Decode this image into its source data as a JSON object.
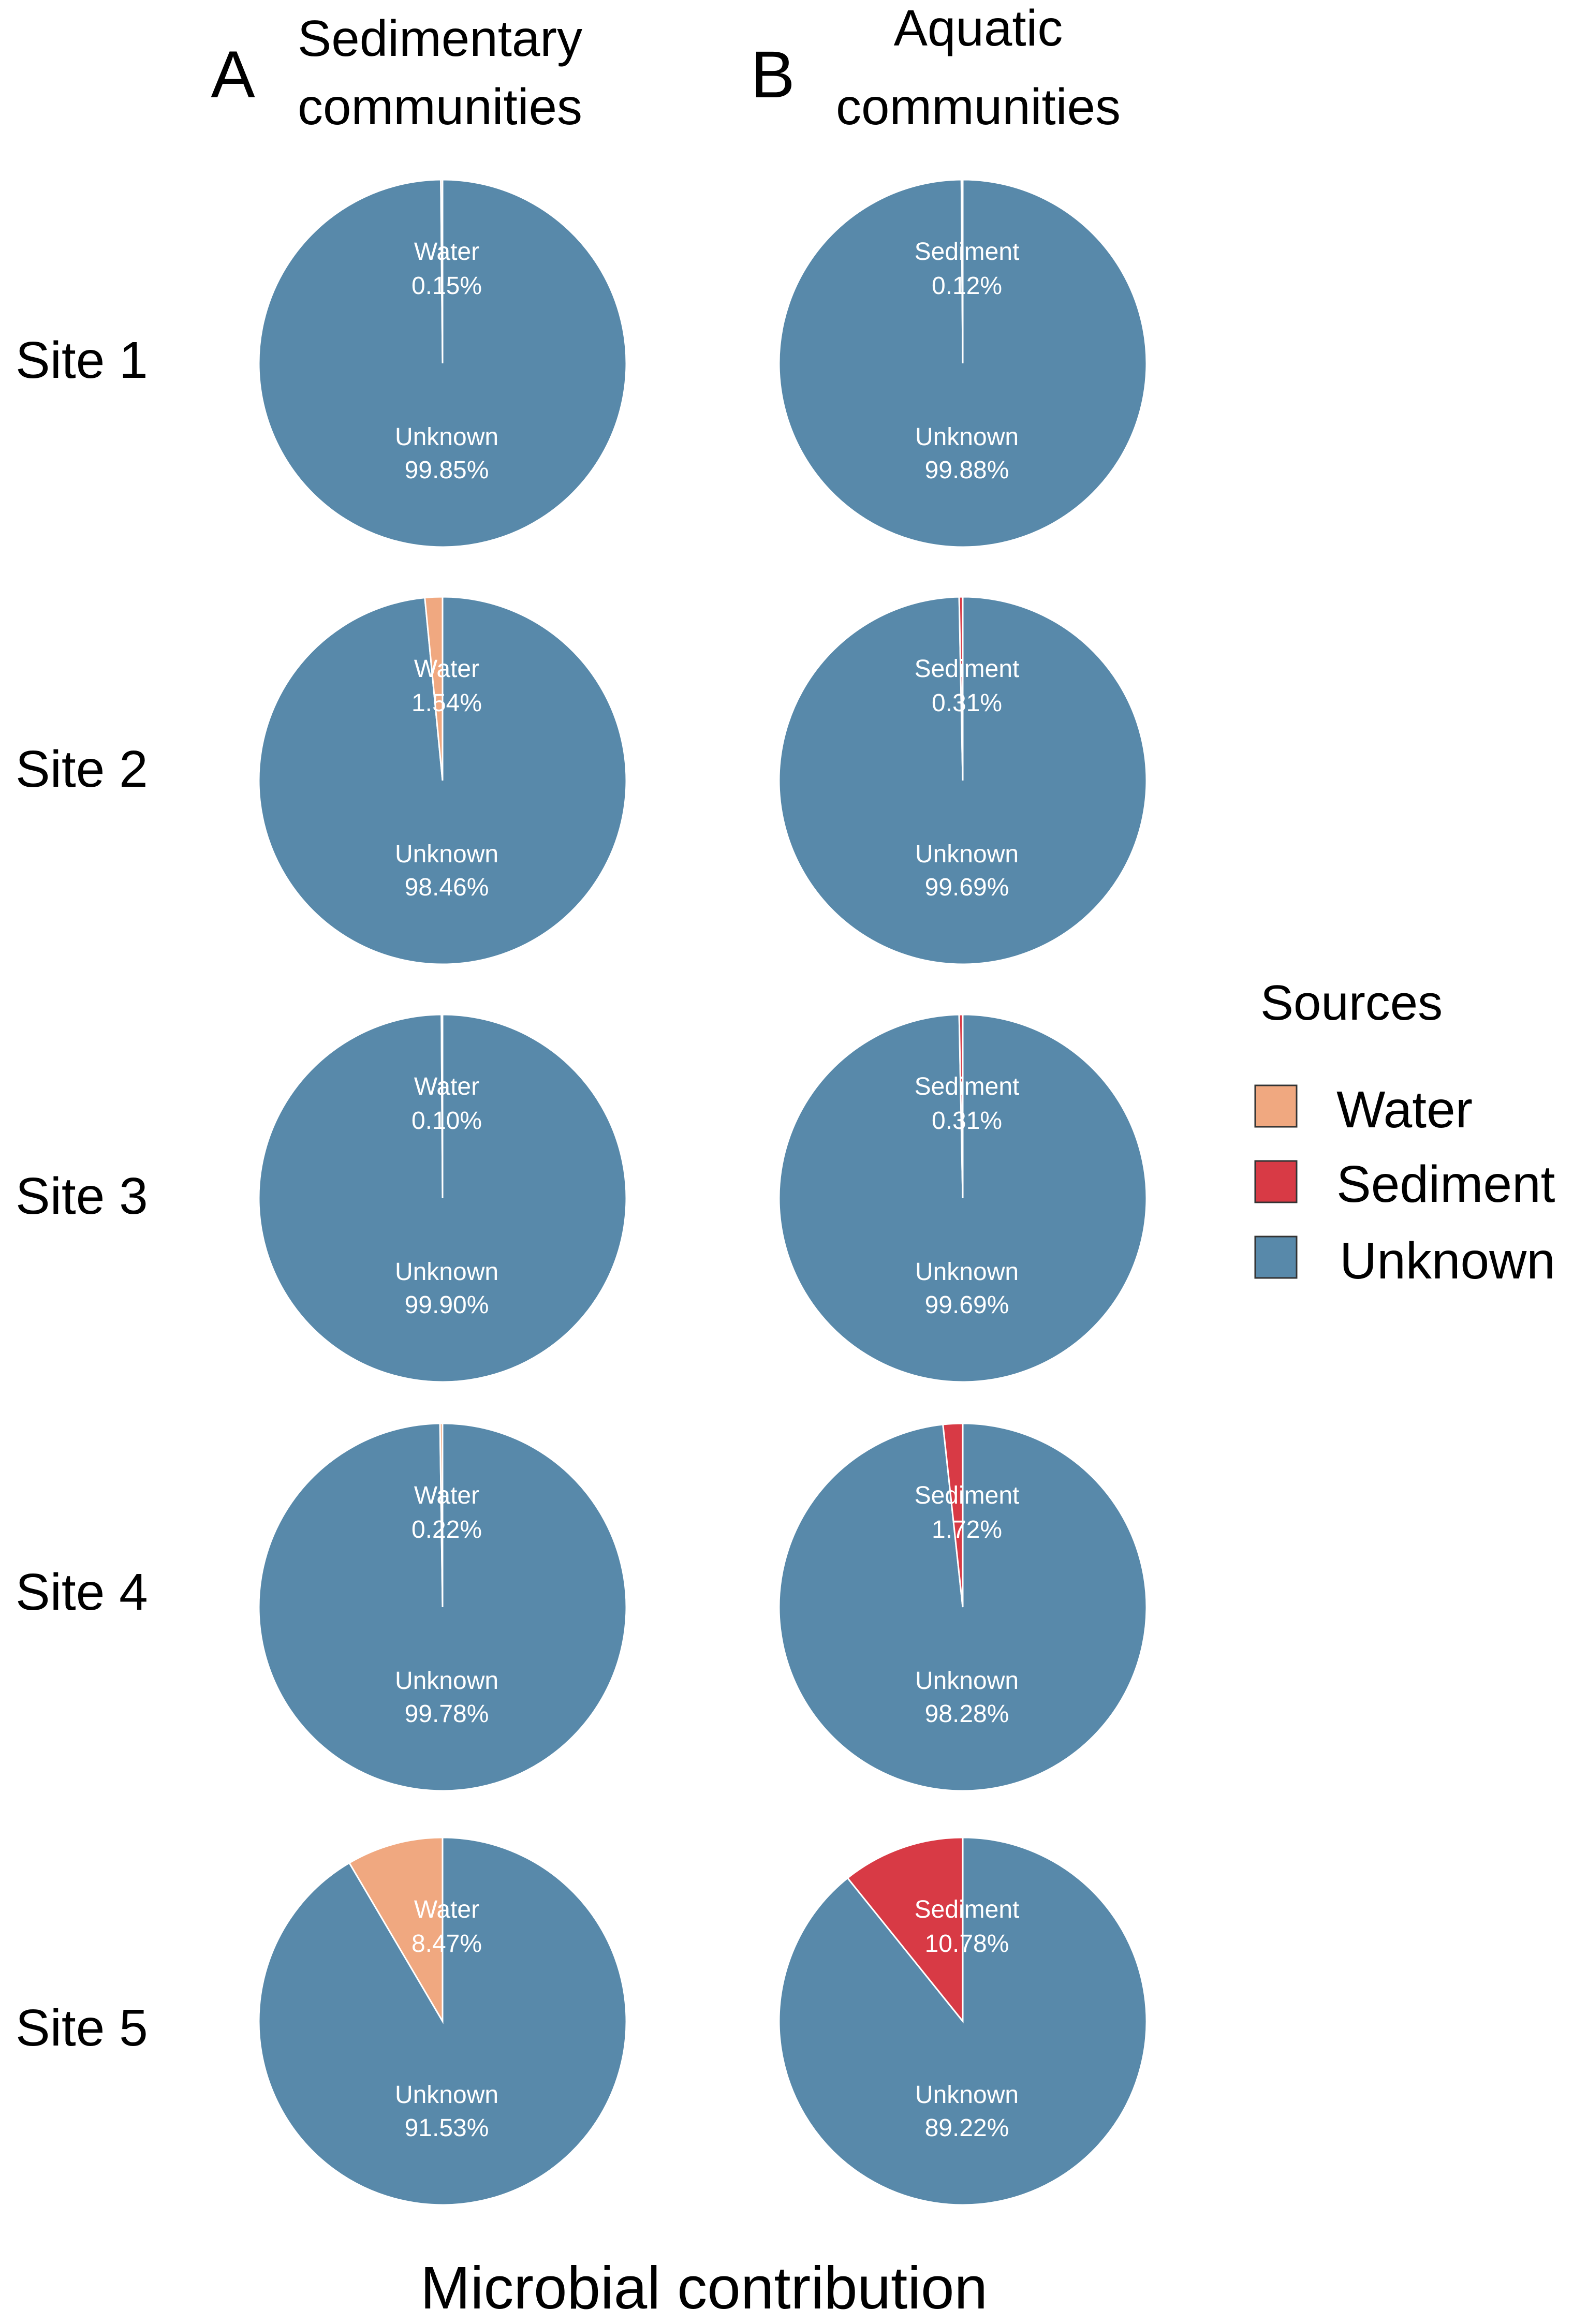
{
  "chart_data": {
    "type": "pie",
    "xlabel": "Microbial contribution",
    "panels": [
      {
        "letter": "A",
        "title": [
          "Sedimentary",
          "communities"
        ]
      },
      {
        "letter": "B",
        "title": [
          "Aquatic",
          "communities"
        ]
      }
    ],
    "rows": [
      "Site 1",
      "Site 2",
      "Site 3",
      "Site 4",
      "Site 5"
    ],
    "charts": [
      {
        "panel": "A",
        "site": "Site 1",
        "slices": [
          {
            "source": "Water",
            "value": 0.15,
            "label": "0.15%"
          },
          {
            "source": "Unknown",
            "value": 99.85,
            "label": "99.85%"
          }
        ]
      },
      {
        "panel": "B",
        "site": "Site 1",
        "slices": [
          {
            "source": "Sediment",
            "value": 0.12,
            "label": "0.12%"
          },
          {
            "source": "Unknown",
            "value": 99.88,
            "label": "99.88%"
          }
        ]
      },
      {
        "panel": "A",
        "site": "Site 2",
        "slices": [
          {
            "source": "Water",
            "value": 1.54,
            "label": "1.54%"
          },
          {
            "source": "Unknown",
            "value": 98.46,
            "label": "98.46%"
          }
        ]
      },
      {
        "panel": "B",
        "site": "Site 2",
        "slices": [
          {
            "source": "Sediment",
            "value": 0.31,
            "label": "0.31%"
          },
          {
            "source": "Unknown",
            "value": 99.69,
            "label": "99.69%"
          }
        ]
      },
      {
        "panel": "A",
        "site": "Site 3",
        "slices": [
          {
            "source": "Water",
            "value": 0.1,
            "label": "0.10%"
          },
          {
            "source": "Unknown",
            "value": 99.9,
            "label": "99.90%"
          }
        ]
      },
      {
        "panel": "B",
        "site": "Site 3",
        "slices": [
          {
            "source": "Sediment",
            "value": 0.31,
            "label": "0.31%"
          },
          {
            "source": "Unknown",
            "value": 99.69,
            "label": "99.69%"
          }
        ]
      },
      {
        "panel": "A",
        "site": "Site 4",
        "slices": [
          {
            "source": "Water",
            "value": 0.22,
            "label": "0.22%"
          },
          {
            "source": "Unknown",
            "value": 99.78,
            "label": "99.78%"
          }
        ]
      },
      {
        "panel": "B",
        "site": "Site 4",
        "slices": [
          {
            "source": "Sediment",
            "value": 1.72,
            "label": "1.72%"
          },
          {
            "source": "Unknown",
            "value": 98.28,
            "label": "98.28%"
          }
        ]
      },
      {
        "panel": "A",
        "site": "Site 5",
        "slices": [
          {
            "source": "Water",
            "value": 8.47,
            "label": "8.47%"
          },
          {
            "source": "Unknown",
            "value": 91.53,
            "label": "91.53%"
          }
        ]
      },
      {
        "panel": "B",
        "site": "Site 5",
        "slices": [
          {
            "source": "Sediment",
            "value": 10.78,
            "label": "10.78%"
          },
          {
            "source": "Unknown",
            "value": 89.22,
            "label": "89.22%"
          }
        ]
      }
    ],
    "legend": {
      "title": "Sources",
      "position": "right",
      "entries": [
        {
          "name": "Water",
          "color": "#F0A880"
        },
        {
          "name": "Sediment",
          "color": "#D83A45"
        },
        {
          "name": "Unknown",
          "color": "#5889AA"
        }
      ]
    }
  }
}
